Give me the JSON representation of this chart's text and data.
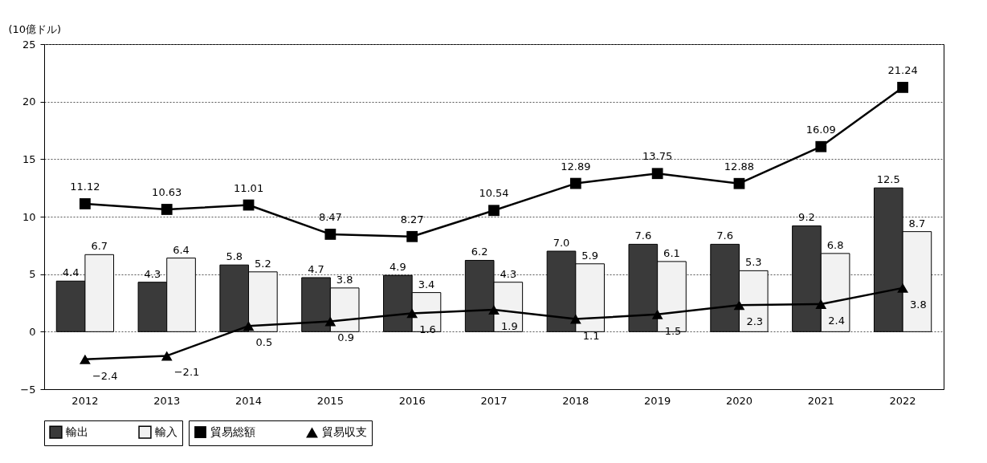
{
  "chart_data": {
    "type": "bar",
    "ylabel": "(10億ドル)",
    "categories": [
      "2012",
      "2013",
      "2014",
      "2015",
      "2016",
      "2017",
      "2018",
      "2019",
      "2020",
      "2021",
      "2022"
    ],
    "series": [
      {
        "name": "輸出",
        "color": "#3a3a3a",
        "values": [
          4.4,
          4.3,
          5.8,
          4.7,
          4.9,
          6.2,
          7.0,
          7.6,
          7.6,
          9.2,
          12.5
        ],
        "value_labels": [
          "4.4",
          "4.3",
          "5.8",
          "4.7",
          "4.9",
          "6.2",
          "7.0",
          "7.6",
          "7.6",
          "9.2",
          "12.5"
        ]
      },
      {
        "name": "輸入",
        "color": "#f2f2f2",
        "values": [
          6.7,
          6.4,
          5.2,
          3.8,
          3.4,
          4.3,
          5.9,
          6.1,
          5.3,
          6.8,
          8.7
        ],
        "value_labels": [
          "6.7",
          "6.4",
          "5.2",
          "3.8",
          "3.4",
          "4.3",
          "5.9",
          "6.1",
          "5.3",
          "6.8",
          "8.7"
        ]
      },
      {
        "name": "貿易総額",
        "type": "line",
        "marker": "square",
        "color": "#000000",
        "values": [
          11.12,
          10.63,
          11.01,
          8.47,
          8.27,
          10.54,
          12.89,
          13.75,
          12.88,
          16.09,
          21.24
        ],
        "value_labels": [
          "11.12",
          "10.63",
          "11.01",
          "8.47",
          "8.27",
          "10.54",
          "12.89",
          "13.75",
          "12.88",
          "16.09",
          "21.24"
        ]
      },
      {
        "name": "貿易収支",
        "type": "line",
        "marker": "triangle",
        "color": "#000000",
        "values": [
          -2.4,
          -2.1,
          0.5,
          0.9,
          1.6,
          1.9,
          1.1,
          1.5,
          2.3,
          2.4,
          3.8
        ],
        "value_labels": [
          "−2.4",
          "−2.1",
          "0.5",
          "0.9",
          "1.6",
          "1.9",
          "1.1",
          "1.5",
          "2.3",
          "2.4",
          "3.8"
        ]
      }
    ],
    "ylim": [
      -5,
      25
    ],
    "yticks": [
      {
        "value": -5,
        "label": "−5"
      },
      0,
      5,
      10,
      15,
      20,
      25
    ],
    "grid": "y",
    "legend": "bottom"
  }
}
